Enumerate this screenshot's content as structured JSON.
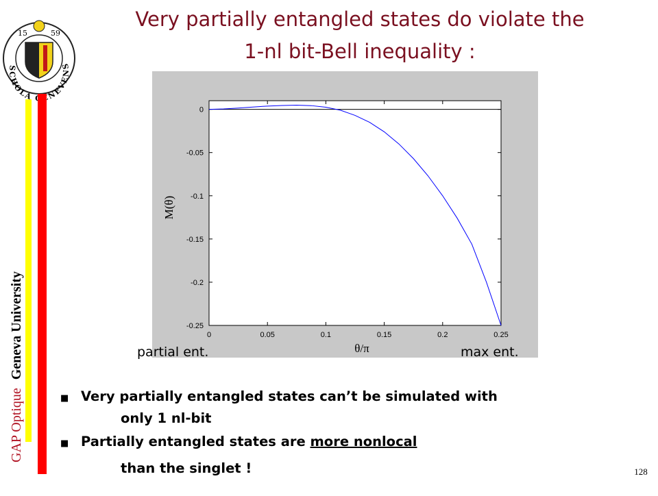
{
  "header": {
    "title_lines": [
      "Very partially entangled states do violate the",
      "1-nl bit-Bell inequality :"
    ]
  },
  "logo": {
    "left_year": "15",
    "right_year": "59",
    "motto": "SCHOLA GENEVENSIS"
  },
  "sidebar": {
    "group": "GAP Optique",
    "university": "Geneva University"
  },
  "chart_data": {
    "type": "line",
    "xlabel": "θ/π",
    "ylabel": "M(θ)",
    "x": [
      0,
      0.0125,
      0.025,
      0.0375,
      0.05,
      0.0625,
      0.075,
      0.0875,
      0.1,
      0.1125,
      0.125,
      0.1375,
      0.15,
      0.1625,
      0.175,
      0.1875,
      0.2,
      0.2125,
      0.225,
      0.2375,
      0.25
    ],
    "series": [
      {
        "color": "#0000ff",
        "values": [
          0,
          0.0005,
          0.0015,
          0.0027,
          0.0038,
          0.0045,
          0.0048,
          0.0043,
          0.0025,
          -0.001,
          -0.007,
          -0.015,
          -0.026,
          -0.04,
          -0.057,
          -0.077,
          -0.1,
          -0.126,
          -0.156,
          -0.2,
          -0.25
        ]
      }
    ],
    "xlim": [
      0,
      0.25
    ],
    "ylim": [
      -0.25,
      0.01
    ],
    "xticks": [
      0,
      0.05,
      0.1,
      0.15,
      0.2,
      0.25
    ],
    "yticks": [
      0,
      -0.05,
      -0.1,
      -0.15,
      -0.2,
      -0.25
    ],
    "reference_line": 0,
    "annotations": [
      "partial ent.",
      "max ent."
    ]
  },
  "bullets": [
    {
      "lines": [
        "Very partially entangled states can’t be simulated with",
        "only 1 nl-bit"
      ]
    },
    {
      "lead": "Partially entangled states are ",
      "emphasis": "more nonlocal",
      "rest": "than the singlet !"
    }
  ],
  "page_number": "128"
}
